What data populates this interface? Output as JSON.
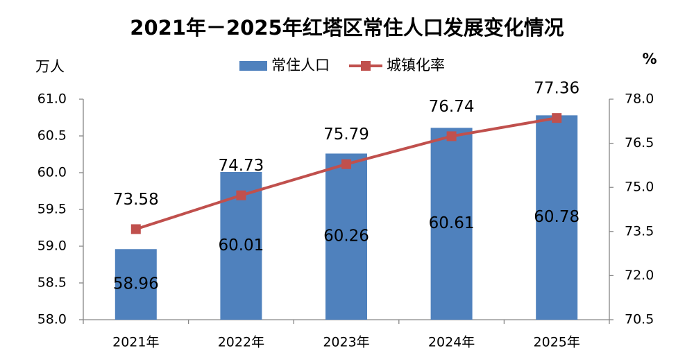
{
  "chart_data": {
    "type": "bar_line",
    "title": "2021年－2025年红塔区常住人口发展变化情况",
    "y_label": "万人",
    "y2_label": "%",
    "categories": [
      "2021年",
      "2022年",
      "2023年",
      "2024年",
      "2025年"
    ],
    "series": [
      {
        "name": "常住人口",
        "type": "bar",
        "color": "#4f81bd",
        "values": [
          58.96,
          60.01,
          60.26,
          60.61,
          60.78
        ]
      },
      {
        "name": "城镇化率",
        "type": "line",
        "axis": "y2",
        "color": "#c0504d",
        "values": [
          73.58,
          74.73,
          75.79,
          76.74,
          77.36
        ]
      }
    ],
    "ylim": [
      58,
      61
    ],
    "yticks": [
      {
        "value": 58,
        "label": "58.0"
      },
      58.5,
      {
        "value": 59,
        "label": "59.0"
      },
      59.5,
      {
        "value": 60,
        "label": "60.0"
      },
      60.5,
      {
        "value": 61,
        "label": "61.0"
      }
    ],
    "y2lim": [
      70.5,
      78
    ],
    "y2ticks": [
      70.5,
      {
        "value": 72,
        "label": "72.0"
      },
      73.5,
      {
        "value": 75,
        "label": "75.0"
      },
      76.5,
      {
        "value": 78,
        "label": "78.0"
      }
    ],
    "grid": false
  }
}
